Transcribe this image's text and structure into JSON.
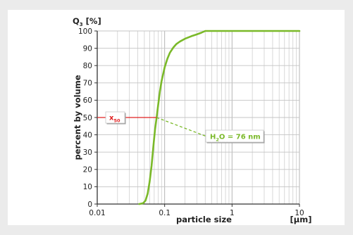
{
  "chart_data": {
    "type": "line",
    "title": "",
    "xlabel": "particle size",
    "xunit": "[µm]",
    "ylabel": "percent by volume",
    "yaxis_name": "Q",
    "yaxis_name_sub": "3",
    "yunit": "[%]",
    "xscale": "log",
    "xlim": [
      0.01,
      10
    ],
    "ylim": [
      0,
      100
    ],
    "grid": true,
    "x_tick_labels": [
      "0.01",
      "0.1",
      "1",
      "10"
    ],
    "y_tick_labels": [
      "0",
      "10",
      "20",
      "30",
      "40",
      "50",
      "60",
      "70",
      "80",
      "90",
      "100"
    ],
    "series": [
      {
        "color": "#7ab929",
        "x": [
          0.042,
          0.048,
          0.052,
          0.056,
          0.06,
          0.064,
          0.068,
          0.072,
          0.076,
          0.08,
          0.085,
          0.09,
          0.1,
          0.11,
          0.12,
          0.135,
          0.15,
          0.17,
          0.2,
          0.25,
          0.3,
          0.35,
          0.4,
          1,
          10
        ],
        "y": [
          0,
          0.5,
          2,
          6,
          13,
          22,
          33,
          43,
          50,
          57,
          65,
          71,
          79,
          84,
          87.5,
          90.5,
          92.5,
          94,
          95.5,
          97,
          98,
          99,
          100,
          100,
          100
        ]
      }
    ],
    "annotations": [
      {
        "label": "x",
        "label_sub": "50",
        "color": "#e02020",
        "y": 50
      },
      {
        "label_parts": [
          "H",
          "2",
          "O = 76 nm"
        ],
        "color": "#7ab929",
        "x": 0.076
      }
    ]
  }
}
